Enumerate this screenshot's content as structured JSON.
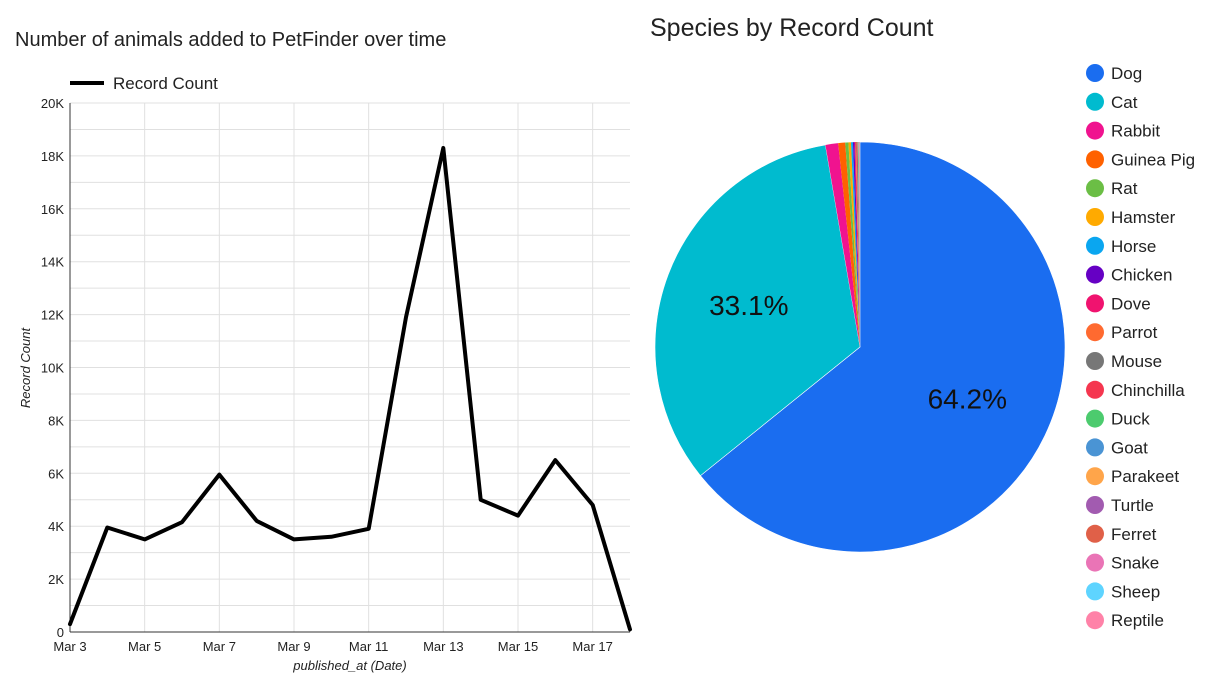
{
  "chart_data": [
    {
      "type": "line",
      "title": "Number of animals added to PetFinder over time",
      "xlabel": "published_at (Date)",
      "ylabel": "Record Count",
      "legend": {
        "position": "top-left",
        "entries": [
          "Record Count"
        ]
      },
      "grid": true,
      "x": [
        "Mar 3",
        "Mar 4",
        "Mar 5",
        "Mar 6",
        "Mar 7",
        "Mar 8",
        "Mar 9",
        "Mar 10",
        "Mar 11",
        "Mar 12",
        "Mar 13",
        "Mar 14",
        "Mar 15",
        "Mar 16",
        "Mar 17",
        "Mar 18"
      ],
      "x_tick_labels": [
        "Mar 3",
        "Mar 5",
        "Mar 7",
        "Mar 9",
        "Mar 11",
        "Mar 13",
        "Mar 15",
        "Mar 17"
      ],
      "series": [
        {
          "name": "Record Count",
          "color": "#000000",
          "values": [
            300,
            3950,
            3500,
            4150,
            5950,
            4200,
            3500,
            3600,
            3900,
            11900,
            18300,
            5000,
            4400,
            6500,
            4800,
            100
          ]
        }
      ],
      "ylim": [
        0,
        20000
      ],
      "y_ticks": [
        0,
        2000,
        4000,
        6000,
        8000,
        10000,
        12000,
        14000,
        16000,
        18000,
        20000
      ],
      "y_tick_labels": [
        "0",
        "2K",
        "4K",
        "6K",
        "8K",
        "10K",
        "12K",
        "14K",
        "16K",
        "18K",
        "20K"
      ]
    },
    {
      "type": "pie",
      "title": "Species by Record Count",
      "legend": {
        "position": "right"
      },
      "slices": [
        {
          "label": "Dog",
          "value": 64.2,
          "display": "64.2%",
          "color": "#1A6DF0"
        },
        {
          "label": "Cat",
          "value": 33.1,
          "display": "33.1%",
          "color": "#00BBCF"
        },
        {
          "label": "Rabbit",
          "value": 1.0,
          "color": "#F0138F"
        },
        {
          "label": "Guinea Pig",
          "value": 0.55,
          "color": "#FF6100"
        },
        {
          "label": "Rat",
          "value": 0.25,
          "color": "#6BBE45"
        },
        {
          "label": "Hamster",
          "value": 0.2,
          "color": "#FFAA00"
        },
        {
          "label": "Horse",
          "value": 0.15,
          "color": "#0AA6F0"
        },
        {
          "label": "Chicken",
          "value": 0.12,
          "color": "#6600C4"
        },
        {
          "label": "Dove",
          "value": 0.08,
          "color": "#F0136F"
        },
        {
          "label": "Parrot",
          "value": 0.07,
          "color": "#FF6A30"
        },
        {
          "label": "Mouse",
          "value": 0.06,
          "color": "#777777"
        },
        {
          "label": "Chinchilla",
          "value": 0.05,
          "color": "#F5364F"
        },
        {
          "label": "Duck",
          "value": 0.04,
          "color": "#4CCB6E"
        },
        {
          "label": "Goat",
          "value": 0.03,
          "color": "#4A94D4"
        },
        {
          "label": "Parakeet",
          "value": 0.03,
          "color": "#FFA54A"
        },
        {
          "label": "Turtle",
          "value": 0.02,
          "color": "#A25BB0"
        },
        {
          "label": "Ferret",
          "value": 0.02,
          "color": "#E06048"
        },
        {
          "label": "Snake",
          "value": 0.01,
          "color": "#EA74B6"
        },
        {
          "label": "Sheep",
          "value": 0.01,
          "color": "#5ED4FF"
        },
        {
          "label": "Reptile",
          "value": 0.01,
          "color": "#FF82A8"
        }
      ]
    }
  ]
}
